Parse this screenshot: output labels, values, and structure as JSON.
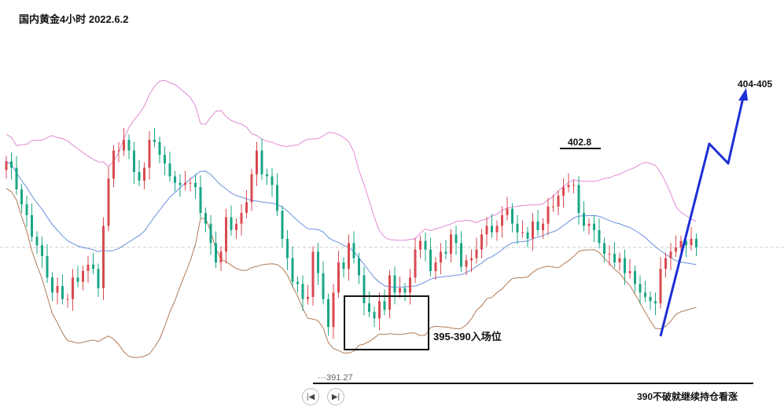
{
  "title": "国内黄金4小时 2022.6.2",
  "annotations": {
    "peak": "402.8",
    "target": "404-405",
    "entry": "395-390入场位",
    "low": "391.27",
    "footer": "390不破就继续持仓看涨"
  },
  "colors": {
    "up": "#d94a50",
    "down": "#1aa686",
    "upper_band": "#e08ad6",
    "middle_band": "#6a8fe0",
    "lower_band": "#b07a55",
    "arrow": "#1d2fd6"
  },
  "icons": {
    "prev": "skip-prev-icon",
    "next": "skip-next-icon"
  },
  "chart_data": {
    "type": "candlestick",
    "ylim": [
      389.5,
      406.0
    ],
    "close": [
      399.6,
      399.3,
      398.3,
      397.6,
      397.1,
      396.1,
      395.7,
      395.2,
      394.2,
      393.5,
      393.8,
      393.2,
      393.2,
      394.2,
      394.0,
      394.5,
      394.8,
      394.6,
      393.7,
      396.6,
      398.8,
      400.1,
      400.1,
      400.6,
      400.1,
      399.1,
      398.7,
      399.3,
      400.6,
      400.5,
      399.9,
      399.5,
      398.9,
      398.6,
      398.5,
      398.6,
      398.6,
      398.4,
      397.2,
      396.7,
      395.8,
      394.9,
      395.4,
      397.0,
      396.4,
      396.7,
      397.2,
      397.7,
      399.0,
      400.1,
      399.0,
      398.9,
      398.5,
      397.3,
      396.0,
      395.1,
      394.0,
      393.9,
      393.2,
      393.3,
      395.4,
      394.4,
      393.2,
      391.9,
      393.5,
      394.9,
      394.6,
      395.8,
      395.1,
      394.3,
      393.0,
      392.6,
      392.3,
      393.1,
      392.7,
      394.3,
      393.5,
      393.7,
      393.5,
      394.2,
      395.5,
      395.9,
      395.5,
      394.5,
      394.9,
      395.4,
      395.3,
      396.2,
      395.8,
      394.7,
      395.0,
      395.1,
      395.5,
      396.2,
      396.6,
      396.3,
      396.6,
      397.1,
      397.4,
      396.7,
      396.3,
      396.3,
      396.0,
      396.8,
      396.4,
      396.7,
      397.5,
      397.5,
      398.0,
      398.4,
      398.5,
      398.5,
      397.2,
      396.6,
      396.7,
      396.4,
      395.8,
      395.3,
      395.3,
      394.9,
      395.1,
      394.4,
      394.5,
      393.9,
      393.5,
      393.3,
      393.1,
      393.0,
      394.6,
      395.1,
      395.4,
      395.6,
      395.9,
      395.7,
      396.0,
      395.6
    ]
  }
}
